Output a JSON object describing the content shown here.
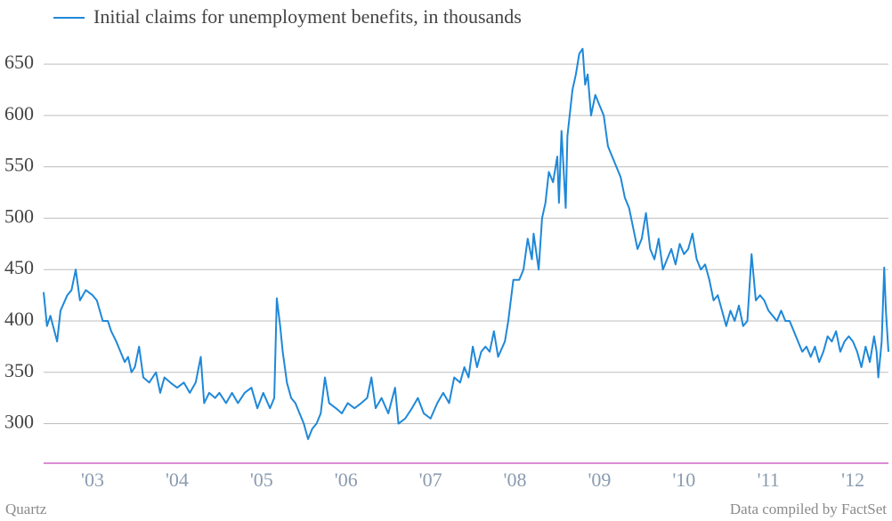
{
  "chart_data": {
    "type": "line",
    "series": [
      {
        "name": "Initial claims for unemployment benefits, in thousands",
        "color": "#1f88d8",
        "x": [
          2002.92,
          2002.96,
          2003.0,
          2003.08,
          2003.12,
          2003.2,
          2003.25,
          2003.3,
          2003.35,
          2003.42,
          2003.5,
          2003.55,
          2003.62,
          2003.68,
          2003.72,
          2003.78,
          2003.83,
          2003.88,
          2003.92,
          2003.96,
          2004.0,
          2004.05,
          2004.1,
          2004.17,
          2004.25,
          2004.3,
          2004.35,
          2004.42,
          2004.5,
          2004.58,
          2004.65,
          2004.72,
          2004.78,
          2004.82,
          2004.88,
          2004.95,
          2005.0,
          2005.08,
          2005.15,
          2005.22,
          2005.3,
          2005.38,
          2005.45,
          2005.52,
          2005.6,
          2005.65,
          2005.68,
          2005.72,
          2005.75,
          2005.8,
          2005.85,
          2005.9,
          2005.95,
          2006.0,
          2006.05,
          2006.1,
          2006.15,
          2006.2,
          2006.25,
          2006.3,
          2006.38,
          2006.45,
          2006.52,
          2006.6,
          2006.68,
          2006.75,
          2006.8,
          2006.85,
          2006.92,
          2007.0,
          2007.08,
          2007.12,
          2007.2,
          2007.28,
          2007.35,
          2007.42,
          2007.5,
          2007.58,
          2007.65,
          2007.72,
          2007.78,
          2007.85,
          2007.9,
          2007.95,
          2008.0,
          2008.05,
          2008.1,
          2008.15,
          2008.2,
          2008.25,
          2008.3,
          2008.38,
          2008.42,
          2008.48,
          2008.55,
          2008.6,
          2008.65,
          2008.7,
          2008.72,
          2008.78,
          2008.82,
          2008.86,
          2008.9,
          2008.95,
          2009.0,
          2009.02,
          2009.05,
          2009.1,
          2009.12,
          2009.18,
          2009.22,
          2009.26,
          2009.3,
          2009.33,
          2009.36,
          2009.4,
          2009.45,
          2009.5,
          2009.55,
          2009.6,
          2009.65,
          2009.7,
          2009.75,
          2009.8,
          2009.85,
          2009.9,
          2009.95,
          2010.0,
          2010.05,
          2010.1,
          2010.15,
          2010.2,
          2010.25,
          2010.3,
          2010.35,
          2010.4,
          2010.45,
          2010.5,
          2010.55,
          2010.6,
          2010.65,
          2010.7,
          2010.75,
          2010.8,
          2010.85,
          2010.9,
          2010.95,
          2011.0,
          2011.05,
          2011.1,
          2011.15,
          2011.2,
          2011.25,
          2011.3,
          2011.35,
          2011.4,
          2011.45,
          2011.5,
          2011.55,
          2011.6,
          2011.65,
          2011.7,
          2011.75,
          2011.8,
          2011.85,
          2011.9,
          2011.95,
          2012.0,
          2012.05,
          2012.1,
          2012.15,
          2012.2,
          2012.25,
          2012.3,
          2012.35,
          2012.4,
          2012.45,
          2012.5,
          2012.55,
          2012.6,
          2012.65,
          2012.7,
          2012.75,
          2012.78,
          2012.8,
          2012.84,
          2012.87,
          2012.89,
          2012.92
        ],
        "values": [
          428,
          395,
          405,
          380,
          410,
          425,
          430,
          450,
          420,
          430,
          425,
          420,
          400,
          400,
          390,
          380,
          370,
          360,
          365,
          350,
          355,
          375,
          345,
          340,
          350,
          330,
          345,
          340,
          335,
          340,
          330,
          340,
          365,
          320,
          330,
          325,
          330,
          320,
          330,
          320,
          330,
          335,
          315,
          330,
          315,
          325,
          422,
          395,
          370,
          340,
          325,
          320,
          310,
          300,
          285,
          295,
          300,
          310,
          345,
          320,
          315,
          310,
          320,
          315,
          320,
          325,
          345,
          315,
          325,
          310,
          335,
          300,
          305,
          315,
          325,
          310,
          305,
          320,
          330,
          320,
          345,
          340,
          355,
          345,
          375,
          355,
          370,
          375,
          370,
          390,
          365,
          380,
          400,
          440,
          440,
          450,
          480,
          460,
          485,
          450,
          500,
          515,
          545,
          535,
          560,
          515,
          585,
          510,
          580,
          625,
          640,
          660,
          665,
          630,
          640,
          600,
          620,
          610,
          600,
          570,
          560,
          550,
          540,
          520,
          510,
          490,
          470,
          480,
          505,
          470,
          460,
          480,
          450,
          460,
          470,
          455,
          475,
          465,
          470,
          485,
          460,
          450,
          455,
          440,
          420,
          425,
          410,
          395,
          410,
          400,
          415,
          395,
          400,
          465,
          420,
          425,
          420,
          410,
          405,
          400,
          410,
          400,
          400,
          390,
          380,
          370,
          375,
          365,
          375,
          360,
          370,
          385,
          380,
          390,
          370,
          380,
          385,
          380,
          370,
          355,
          375,
          360,
          385,
          370,
          345,
          380,
          452,
          410,
          370
        ]
      }
    ],
    "xlim": [
      2002.92,
      2012.92
    ],
    "xticks": [
      {
        "value": 2003.5,
        "label": "'03"
      },
      {
        "value": 2004.5,
        "label": "'04"
      },
      {
        "value": 2005.5,
        "label": "'05"
      },
      {
        "value": 2006.5,
        "label": "'06"
      },
      {
        "value": 2007.5,
        "label": "'07"
      },
      {
        "value": 2008.5,
        "label": "'08"
      },
      {
        "value": 2009.5,
        "label": "'09"
      },
      {
        "value": 2010.5,
        "label": "'10"
      },
      {
        "value": 2011.5,
        "label": "'11"
      },
      {
        "value": 2012.5,
        "label": "'12"
      }
    ],
    "ylim": [
      261.5,
      670
    ],
    "yticks": [
      300,
      350,
      400,
      450,
      500,
      550,
      600,
      650
    ],
    "grid": true,
    "source_left": "Quartz",
    "source_right": "Data compiled by FactSet"
  }
}
